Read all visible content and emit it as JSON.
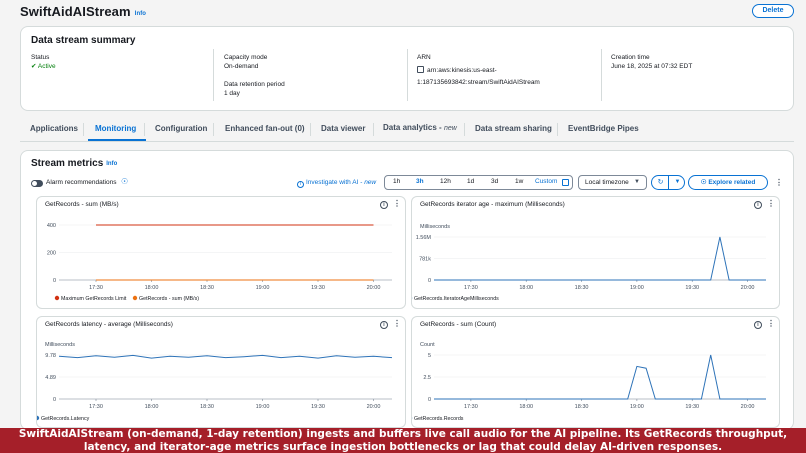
{
  "header": {
    "title": "SwiftAidAIStream",
    "info": "Info",
    "delete_label": "Delete"
  },
  "summary": {
    "heading": "Data stream summary",
    "status_label": "Status",
    "status_value": "Active",
    "capacity_label": "Capacity mode",
    "capacity_value": "On-demand",
    "retention_label": "Data retention period",
    "retention_value": "1 day",
    "arn_label": "ARN",
    "arn_value_line1": "arn:aws:kinesis:us-east-",
    "arn_value_line2": "1:187135693842:stream/SwiftAidAIStream",
    "creation_label": "Creation time",
    "creation_value": "June 18, 2025 at 07:32 EDT"
  },
  "tabs": [
    {
      "label": "Applications"
    },
    {
      "label": "Monitoring"
    },
    {
      "label": "Configuration"
    },
    {
      "label": "Enhanced fan-out (0)"
    },
    {
      "label": "Data viewer"
    },
    {
      "label": "Data analytics -",
      "suffix": "new"
    },
    {
      "label": "Data stream sharing"
    },
    {
      "label": "EventBridge Pipes"
    }
  ],
  "metrics": {
    "heading": "Stream metrics",
    "info": "Info",
    "alarm_label": "Alarm recommendations",
    "investigate_label": "Investigate with AI -",
    "investigate_suffix": "new",
    "ranges": [
      "1h",
      "3h",
      "12h",
      "1d",
      "3d",
      "1w"
    ],
    "selected_range": "3h",
    "custom_label": "Custom",
    "timezone": "Local timezone",
    "explore_label": "Explore related"
  },
  "charts": [
    {
      "title": "GetRecords - sum (MB/s)",
      "ylabel": "",
      "yticks": [
        "400",
        "200",
        "0"
      ],
      "xticks": [
        "17:30",
        "18:00",
        "18:30",
        "19:00",
        "19:30",
        "20:00"
      ],
      "legend": [
        "Maximum GetRecords Limit",
        "GetRecords - sum (MB/s)"
      ],
      "legend_colors": [
        "#d13212",
        "#ec7211"
      ]
    },
    {
      "title": "GetRecords iterator age - maximum (Milliseconds)",
      "ylabel": "Milliseconds",
      "yticks": [
        "1.56M",
        "781k",
        "0"
      ],
      "xticks": [
        "17:30",
        "18:00",
        "18:30",
        "19:00",
        "19:30",
        "20:00"
      ],
      "legend": [
        "GetRecords.IteratorAgeMilliseconds"
      ],
      "legend_colors": [
        "#2e73b8"
      ]
    },
    {
      "title": "GetRecords latency - average (Milliseconds)",
      "ylabel": "Milliseconds",
      "yticks": [
        "9.78",
        "4.89",
        "0"
      ],
      "xticks": [
        "17:30",
        "18:00",
        "18:30",
        "19:00",
        "19:30",
        "20:00"
      ],
      "legend": [
        "GetRecords.Latency"
      ],
      "legend_colors": [
        "#2e73b8"
      ]
    },
    {
      "title": "GetRecords - sum (Count)",
      "ylabel": "Count",
      "yticks": [
        "5",
        "2.5",
        "0"
      ],
      "xticks": [
        "17:30",
        "18:00",
        "18:30",
        "19:00",
        "19:30",
        "20:00"
      ],
      "legend": [
        "GetRecords.Records"
      ],
      "legend_colors": [
        "#2e73b8"
      ]
    }
  ],
  "chart_data": [
    {
      "type": "line",
      "title": "GetRecords - sum (MB/s)",
      "ylim": [
        0,
        400
      ],
      "series": [
        {
          "name": "Maximum GetRecords Limit",
          "x": [
            "17:30",
            "20:00"
          ],
          "values": [
            400,
            400
          ]
        },
        {
          "name": "GetRecords - sum (MB/s)",
          "x": [
            "17:30",
            "20:00"
          ],
          "values": [
            0,
            0
          ]
        }
      ]
    },
    {
      "type": "line",
      "title": "GetRecords iterator age - maximum (Milliseconds)",
      "ylabel": "Milliseconds",
      "ylim": [
        0,
        1560000
      ],
      "series": [
        {
          "name": "GetRecords.IteratorAgeMilliseconds",
          "x": [
            "17:10",
            "19:40",
            "19:45",
            "19:50",
            "20:10"
          ],
          "values": [
            0,
            0,
            1560000,
            0,
            0
          ]
        }
      ]
    },
    {
      "type": "line",
      "title": "GetRecords latency - average (Milliseconds)",
      "ylabel": "Milliseconds",
      "ylim": [
        0,
        9.78
      ],
      "series": [
        {
          "name": "GetRecords.Latency",
          "x": [
            "17:10",
            "17:20",
            "17:30",
            "17:40",
            "17:50",
            "18:00",
            "18:10",
            "18:20",
            "18:30",
            "18:40",
            "18:50",
            "19:00",
            "19:10",
            "19:20",
            "19:30",
            "19:40",
            "19:50",
            "20:00",
            "20:10"
          ],
          "values": [
            9.5,
            9.2,
            9.6,
            9.3,
            9.7,
            9.1,
            9.5,
            9.3,
            9.6,
            9.2,
            9.4,
            9.7,
            9.2,
            9.5,
            9.1,
            9.6,
            9.3,
            9.5,
            9.2
          ]
        }
      ]
    },
    {
      "type": "line",
      "title": "GetRecords - sum (Count)",
      "ylabel": "Count",
      "ylim": [
        0,
        5
      ],
      "series": [
        {
          "name": "GetRecords.Records",
          "x": [
            "17:10",
            "18:55",
            "19:00",
            "19:05",
            "19:10",
            "19:35",
            "19:40",
            "19:45",
            "20:10"
          ],
          "values": [
            0,
            0,
            3.7,
            3.5,
            0,
            0,
            5,
            0,
            0
          ]
        }
      ]
    }
  ],
  "caption": "SwiftAidAIStream (on-demand, 1-day retention) ingests and buffers live call audio for the AI pipeline. Its GetRecords throughput, latency, and iterator-age metrics surface ingestion bottlenecks or lag that could delay AI-driven responses."
}
